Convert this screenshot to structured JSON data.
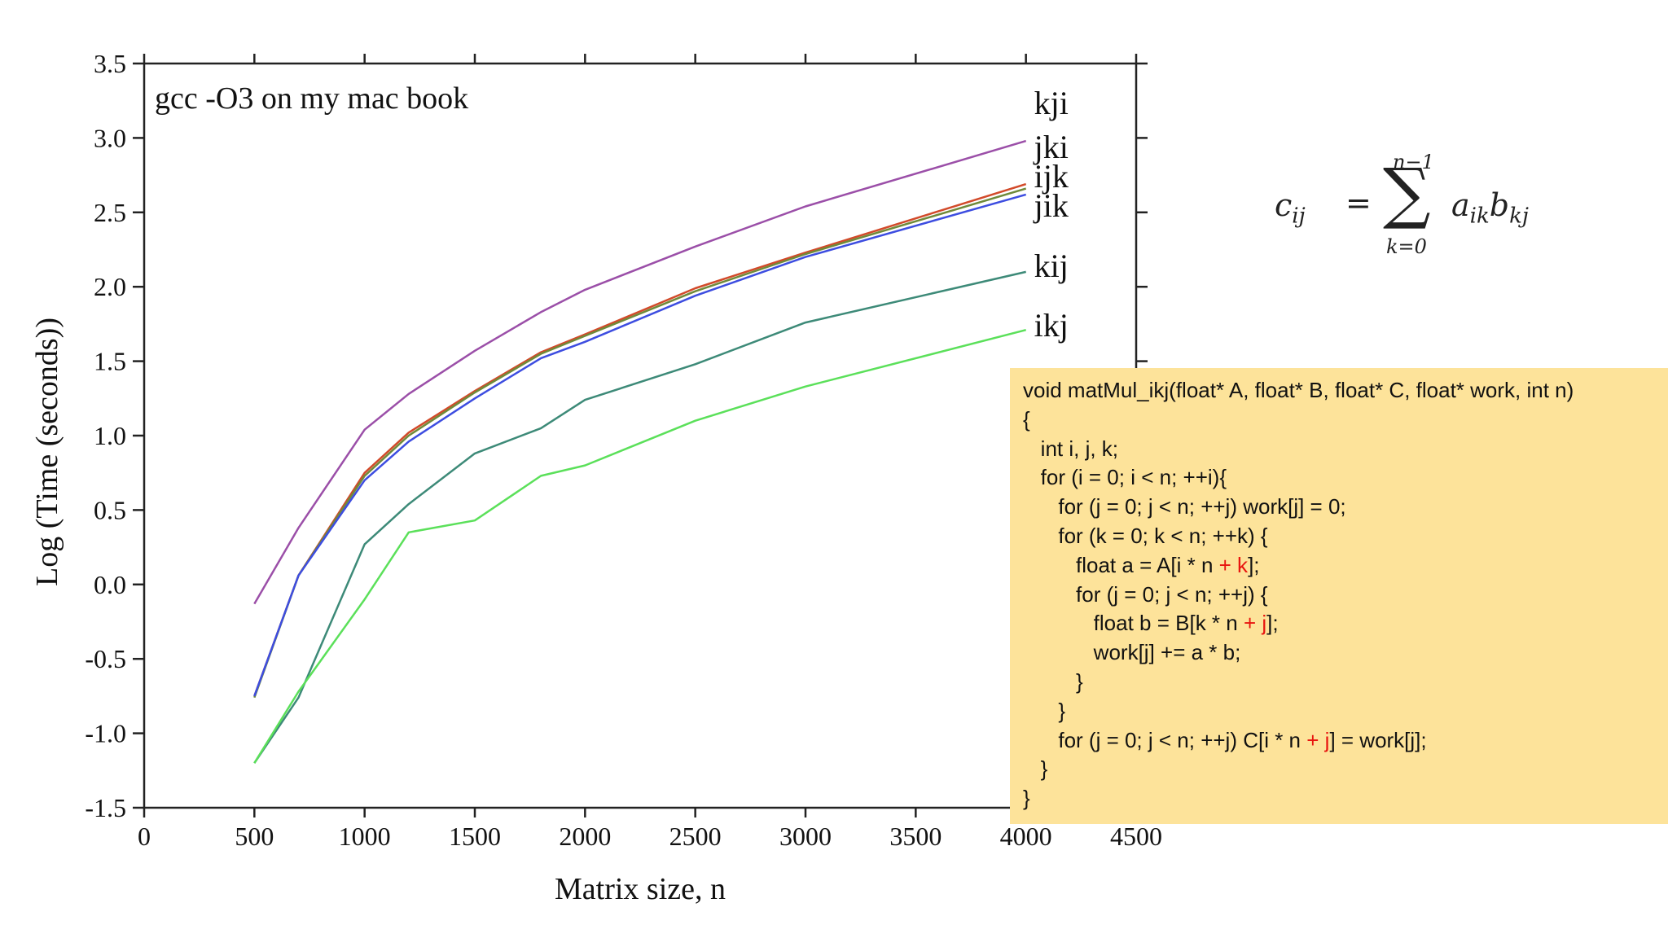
{
  "chart_data": {
    "type": "line",
    "title": "gcc -O3 on my mac book",
    "xlabel": "Matrix size, n",
    "ylabel": "Log  (Time (seconds))",
    "xlim": [
      0,
      4500
    ],
    "ylim": [
      -1.5,
      3.5
    ],
    "xticks": [
      0,
      500,
      1000,
      1500,
      2000,
      2500,
      3000,
      3500,
      4000,
      4500
    ],
    "yticks": [
      "3.5",
      "3.0",
      "2.5",
      "2.0",
      "1.5",
      "1.0",
      "0.5",
      "0.0",
      "-0.5",
      "-1.0",
      "-1.5"
    ],
    "grid": false,
    "series": [
      {
        "name": "kji",
        "color": "#9b4fa8",
        "x": [
          500,
          700,
          1000,
          1200,
          1500,
          1800,
          2000,
          2500,
          3000,
          4000
        ],
        "y": [
          -0.13,
          0.38,
          1.04,
          1.28,
          1.57,
          1.83,
          1.98,
          2.27,
          2.54,
          2.98
        ]
      },
      {
        "name": "jki",
        "color": "#d24a2a",
        "x": [
          500,
          700,
          1000,
          1200,
          1500,
          1800,
          2000,
          2500,
          3000,
          4000
        ],
        "y": [
          -0.75,
          0.06,
          0.75,
          1.02,
          1.3,
          1.56,
          1.68,
          1.99,
          2.23,
          2.69
        ]
      },
      {
        "name": "ijk",
        "color": "#6f8a3a",
        "x": [
          500,
          700,
          1000,
          1200,
          1500,
          1800,
          2000,
          2500,
          3000,
          4000
        ],
        "y": [
          -0.76,
          0.06,
          0.73,
          1.0,
          1.29,
          1.55,
          1.67,
          1.97,
          2.22,
          2.66
        ]
      },
      {
        "name": "jik",
        "color": "#3d4de0",
        "x": [
          500,
          700,
          1000,
          1200,
          1500,
          1800,
          2000,
          2500,
          3000,
          4000
        ],
        "y": [
          -0.75,
          0.06,
          0.7,
          0.96,
          1.25,
          1.52,
          1.63,
          1.94,
          2.2,
          2.62
        ]
      },
      {
        "name": "kij",
        "color": "#3d8a78",
        "x": [
          500,
          700,
          1000,
          1200,
          1500,
          1800,
          2000,
          2500,
          3000,
          4000
        ],
        "y": [
          -1.2,
          -0.76,
          0.27,
          0.54,
          0.88,
          1.05,
          1.24,
          1.48,
          1.76,
          2.1
        ]
      },
      {
        "name": "ikj",
        "color": "#5be05a",
        "x": [
          500,
          700,
          1000,
          1200,
          1500,
          1800,
          2000,
          2500,
          3000,
          4000
        ],
        "y": [
          -1.2,
          -0.72,
          -0.1,
          0.35,
          0.43,
          0.73,
          0.8,
          1.1,
          1.33,
          1.71
        ]
      }
    ]
  },
  "formula": {
    "lhs": "c",
    "lhs_sub": "ij",
    "equals": "=",
    "sum_symbol": "∑",
    "upper": "n−1",
    "lower": "k=0",
    "a": "a",
    "a_sub": "ik",
    "b": "b",
    "b_sub": "kj"
  },
  "code": {
    "lines": [
      [
        {
          "t": "void matMul_ikj(float* A, float* B, float* C, float* work, int n)"
        }
      ],
      [
        {
          "t": "{"
        }
      ],
      [
        {
          "t": "   int i, j, k;"
        }
      ],
      [
        {
          "t": "   for (i = 0; i < n; ++i){"
        }
      ],
      [
        {
          "t": "      for (j = 0; j < n; ++j) work[j] = 0;"
        }
      ],
      [
        {
          "t": "      for (k = 0; k < n; ++k) {"
        }
      ],
      [
        {
          "t": "         float a = A[i * n "
        },
        {
          "t": "+ k",
          "hl": true
        },
        {
          "t": "];"
        }
      ],
      [
        {
          "t": "         for (j = 0; j < n; ++j) {"
        }
      ],
      [
        {
          "t": "            float b = B[k * n "
        },
        {
          "t": "+ j",
          "hl": true
        },
        {
          "t": "];"
        }
      ],
      [
        {
          "t": "            work[j] += a * b;"
        }
      ],
      [
        {
          "t": "         }"
        }
      ],
      [
        {
          "t": "      }"
        }
      ],
      [
        {
          "t": "      for (j = 0; j < n; ++j) C[i * n "
        },
        {
          "t": "+ j",
          "hl": true
        },
        {
          "t": "] = work[j];"
        }
      ],
      [
        {
          "t": "   }"
        }
      ],
      [
        {
          "t": "}"
        }
      ]
    ]
  }
}
